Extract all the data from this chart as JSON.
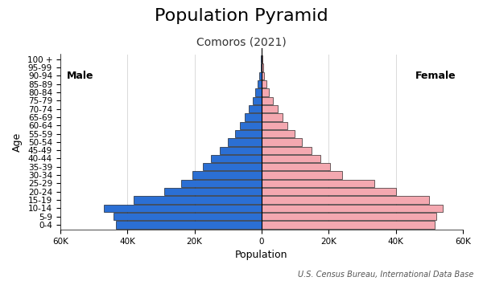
{
  "title": "Population Pyramid",
  "subtitle": "Comoros (2021)",
  "xlabel": "Population",
  "ylabel": "Age",
  "footnote": "U.S. Census Bureau, International Data Base",
  "male_label": "Male",
  "female_label": "Female",
  "age_groups": [
    "0-4",
    "5-9",
    "10-14",
    "15-19",
    "20-24",
    "25-29",
    "30-34",
    "35-39",
    "40-44",
    "45-49",
    "50-54",
    "55-59",
    "60-64",
    "65-69",
    "70-74",
    "75-79",
    "80-84",
    "85-89",
    "90-94",
    "95-99",
    "100 +"
  ],
  "male_values": [
    43500,
    44000,
    47000,
    38000,
    29000,
    24000,
    20500,
    17500,
    15000,
    12500,
    10000,
    8000,
    6500,
    5000,
    3800,
    2700,
    1800,
    1100,
    600,
    300,
    150
  ],
  "female_values": [
    51500,
    52000,
    54000,
    50000,
    40000,
    33500,
    24000,
    20500,
    17500,
    15000,
    12000,
    9800,
    7800,
    6200,
    4700,
    3400,
    2200,
    1400,
    800,
    500,
    250
  ],
  "male_color": "#2B6FD4",
  "female_color": "#F4A8B0",
  "bar_edge_color": "#000000",
  "background_color": "#ffffff",
  "xlim": 60000,
  "xtick_values": [
    -60000,
    -40000,
    -20000,
    0,
    20000,
    40000,
    60000
  ],
  "xtick_labels": [
    "60K",
    "40K",
    "20K",
    "0",
    "20K",
    "40K",
    "60K"
  ],
  "title_fontsize": 16,
  "subtitle_fontsize": 10,
  "label_fontsize": 9,
  "tick_fontsize": 7.5,
  "footnote_fontsize": 7,
  "bar_height": 0.9
}
